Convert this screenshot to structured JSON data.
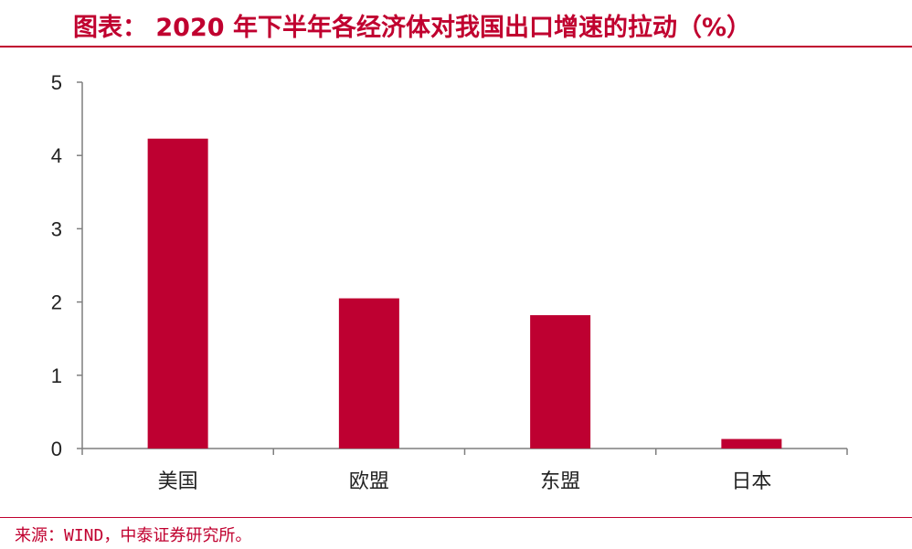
{
  "header": {
    "title": "图表：   2020 年下半年各经济体对我国出口增速的拉动（%）"
  },
  "source": "来源：WIND，中泰证券研究所。",
  "colors": {
    "accent": "#c0002f",
    "bar": "#be0031",
    "axis": "#7f7f7f"
  },
  "chart_data": {
    "type": "bar",
    "categories": [
      "美国",
      "欧盟",
      "东盟",
      "日本"
    ],
    "values": [
      4.23,
      2.05,
      1.82,
      0.13
    ],
    "ylim": [
      0,
      5
    ],
    "yticks": [
      0,
      1,
      2,
      3,
      4,
      5
    ],
    "grid": false,
    "legend": "none"
  }
}
